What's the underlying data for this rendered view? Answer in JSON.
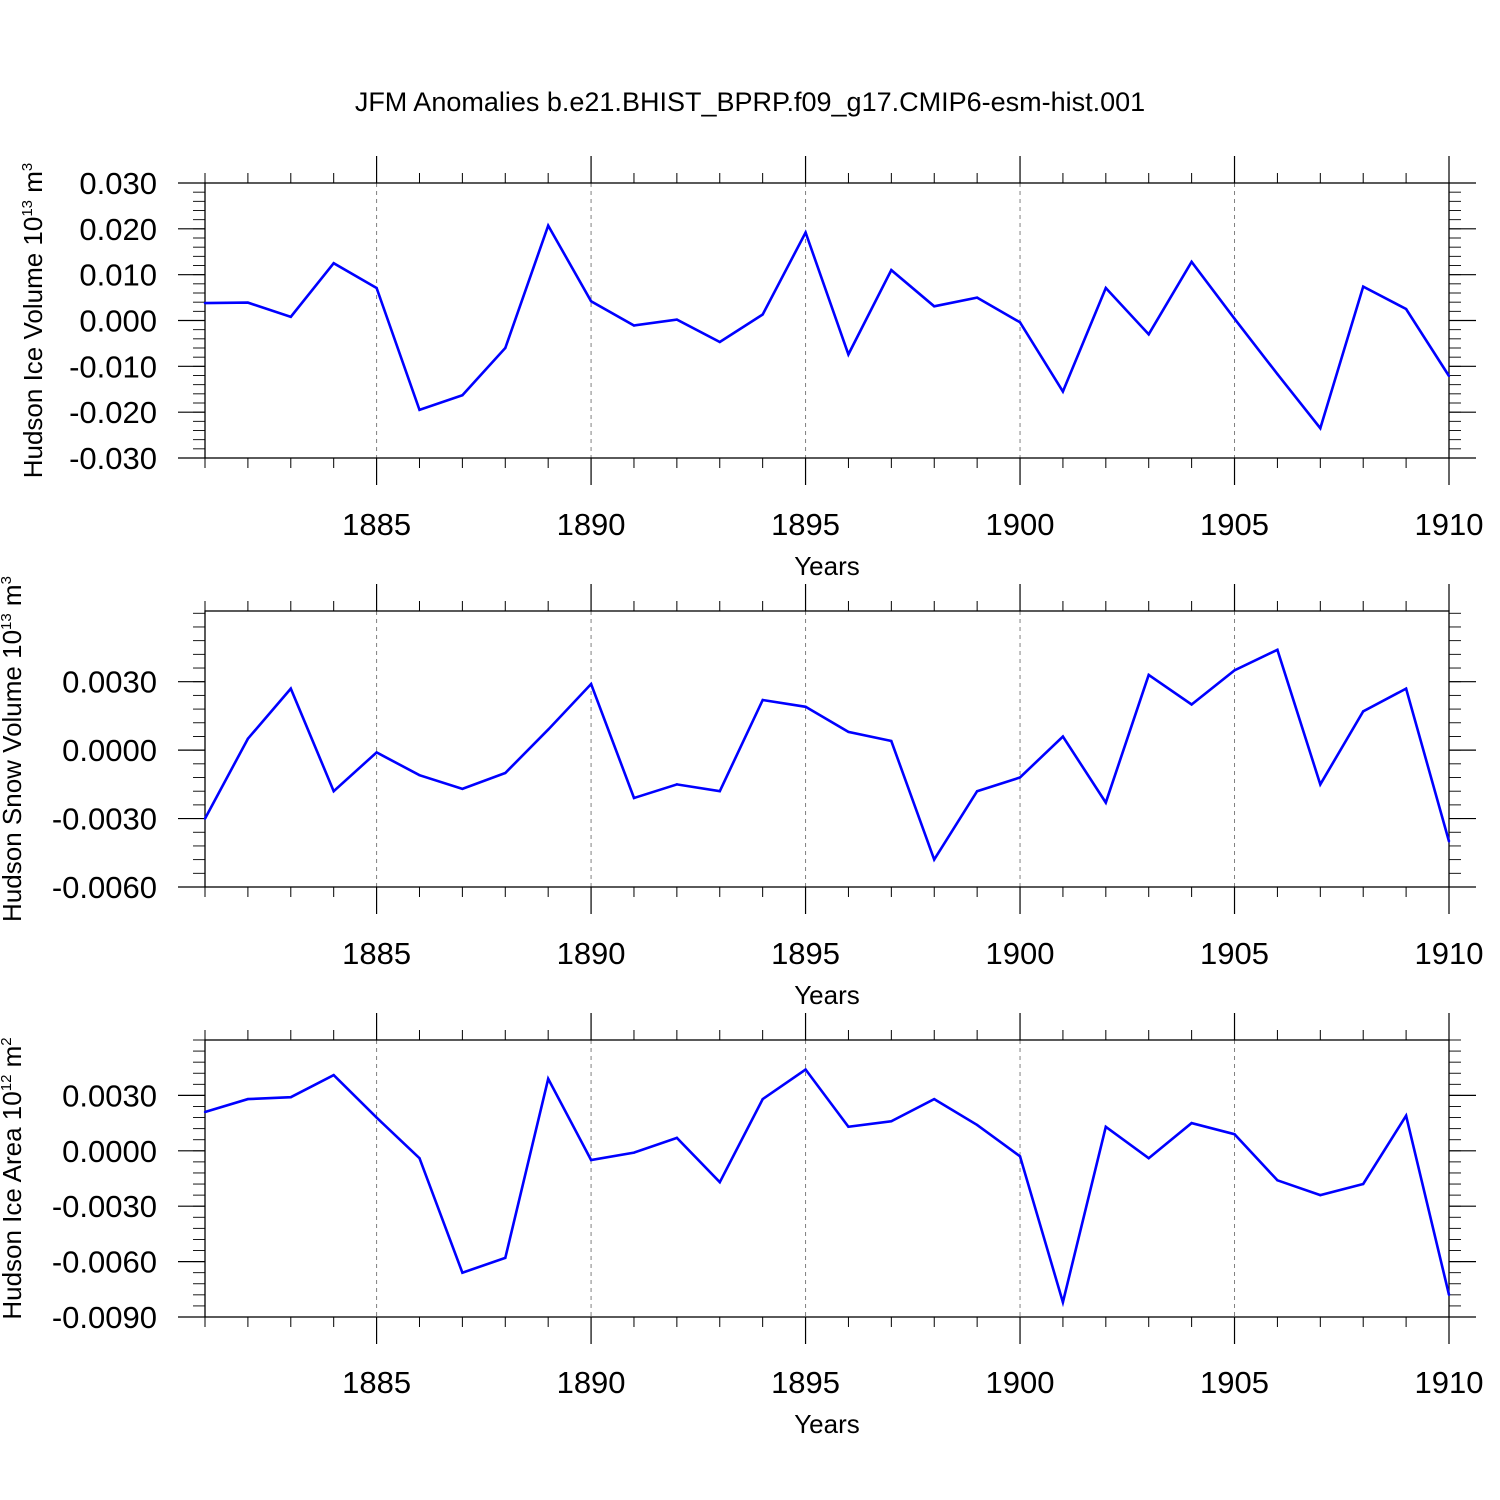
{
  "title": "JFM Anomalies b.e21.BHIST_BPRP.f09_g17.CMIP6-esm-hist.001",
  "colors": {
    "line": "#0000ff",
    "frame": "#000000",
    "grid": "#808080"
  },
  "chart_data": [
    {
      "type": "line",
      "name": "ice-volume",
      "ylabel": {
        "text": "Hudson Ice Volume 10",
        "sup": "13",
        "unit": " m",
        "unit_sup": "3"
      },
      "xlabel": "Years",
      "xlim": [
        1881,
        1910
      ],
      "ylim": [
        -0.03,
        0.03
      ],
      "yticks": [
        {
          "value": 0.03,
          "label": "0.030"
        },
        {
          "value": 0.02,
          "label": "0.020"
        },
        {
          "value": 0.01,
          "label": "0.010"
        },
        {
          "value": 0.0,
          "label": "0.000"
        },
        {
          "value": -0.01,
          "label": "-0.010"
        },
        {
          "value": -0.02,
          "label": "-0.020"
        },
        {
          "value": -0.03,
          "label": "-0.030"
        }
      ],
      "yminor_step": 0.002,
      "xticks": [
        {
          "value": 1885,
          "label": "1885"
        },
        {
          "value": 1890,
          "label": "1890"
        },
        {
          "value": 1895,
          "label": "1895"
        },
        {
          "value": 1900,
          "label": "1900"
        },
        {
          "value": 1905,
          "label": "1905"
        },
        {
          "value": 1910,
          "label": "1910"
        }
      ],
      "x": [
        1881,
        1882,
        1883,
        1884,
        1885,
        1886,
        1887,
        1888,
        1889,
        1890,
        1891,
        1892,
        1893,
        1894,
        1895,
        1896,
        1897,
        1898,
        1899,
        1900,
        1901,
        1902,
        1903,
        1904,
        1905,
        1906,
        1907,
        1908,
        1909,
        1910
      ],
      "y": [
        0.0038,
        0.0039,
        0.0008,
        0.0125,
        0.0071,
        -0.0195,
        -0.0163,
        -0.006,
        0.0207,
        0.0042,
        -0.0011,
        0.0002,
        -0.0047,
        0.0013,
        0.0192,
        -0.0074,
        0.011,
        0.0031,
        0.005,
        -0.0004,
        -0.0155,
        0.0071,
        -0.003,
        0.0128,
        0.0004,
        -0.0117,
        -0.0235,
        0.0074,
        0.0025,
        -0.0121
      ]
    },
    {
      "type": "line",
      "name": "snow-volume",
      "ylabel": {
        "text": "Hudson Snow Volume 10",
        "sup": "13",
        "unit": " m",
        "unit_sup": "3"
      },
      "xlabel": "Years",
      "xlim": [
        1881,
        1910
      ],
      "ylim": [
        -0.006,
        0.0061
      ],
      "yticks": [
        {
          "value": 0.003,
          "label": "0.0030"
        },
        {
          "value": 0.0,
          "label": "0.0000"
        },
        {
          "value": -0.003,
          "label": "-0.0030"
        },
        {
          "value": -0.006,
          "label": "-0.0060"
        }
      ],
      "yminor_step": 0.0006,
      "xticks": [
        {
          "value": 1885,
          "label": "1885"
        },
        {
          "value": 1890,
          "label": "1890"
        },
        {
          "value": 1895,
          "label": "1895"
        },
        {
          "value": 1900,
          "label": "1900"
        },
        {
          "value": 1905,
          "label": "1905"
        },
        {
          "value": 1910,
          "label": "1910"
        }
      ],
      "x": [
        1881,
        1882,
        1883,
        1884,
        1885,
        1886,
        1887,
        1888,
        1889,
        1890,
        1891,
        1892,
        1893,
        1894,
        1895,
        1896,
        1897,
        1898,
        1899,
        1900,
        1901,
        1902,
        1903,
        1904,
        1905,
        1906,
        1907,
        1908,
        1909,
        1910
      ],
      "y": [
        -0.003,
        0.0005,
        0.0027,
        -0.0018,
        -0.0001,
        -0.0011,
        -0.0017,
        -0.001,
        0.0009,
        0.0029,
        -0.0021,
        -0.0015,
        -0.0018,
        0.0022,
        0.0019,
        0.0008,
        0.0004,
        -0.0048,
        -0.0018,
        -0.0012,
        0.0006,
        -0.0023,
        0.0033,
        0.002,
        0.0035,
        0.0044,
        -0.0015,
        0.0017,
        0.0027,
        -0.004
      ]
    },
    {
      "type": "line",
      "name": "ice-area",
      "ylabel": {
        "text": "Hudson Ice Area 10",
        "sup": "12",
        "unit": " m",
        "unit_sup": "2"
      },
      "xlabel": "Years",
      "xlim": [
        1881,
        1910
      ],
      "ylim": [
        -0.009,
        0.006
      ],
      "yticks": [
        {
          "value": 0.003,
          "label": "0.0030"
        },
        {
          "value": 0.0,
          "label": "0.0000"
        },
        {
          "value": -0.003,
          "label": "-0.0030"
        },
        {
          "value": -0.006,
          "label": "-0.0060"
        },
        {
          "value": -0.009,
          "label": "-0.0090"
        }
      ],
      "yminor_step": 0.0006,
      "xticks": [
        {
          "value": 1885,
          "label": "1885"
        },
        {
          "value": 1890,
          "label": "1890"
        },
        {
          "value": 1895,
          "label": "1895"
        },
        {
          "value": 1900,
          "label": "1900"
        },
        {
          "value": 1905,
          "label": "1905"
        },
        {
          "value": 1910,
          "label": "1910"
        }
      ],
      "x": [
        1881,
        1882,
        1883,
        1884,
        1885,
        1886,
        1887,
        1888,
        1889,
        1890,
        1891,
        1892,
        1893,
        1894,
        1895,
        1896,
        1897,
        1898,
        1899,
        1900,
        1901,
        1902,
        1903,
        1904,
        1905,
        1906,
        1907,
        1908,
        1909,
        1910
      ],
      "y": [
        0.0021,
        0.0028,
        0.0029,
        0.0041,
        0.0018,
        -0.0004,
        -0.0066,
        -0.0058,
        0.0039,
        -0.0005,
        -0.0001,
        0.0007,
        -0.0017,
        0.0028,
        0.0044,
        0.0013,
        0.0016,
        0.0028,
        0.0014,
        -0.0003,
        -0.0082,
        0.0013,
        -0.0004,
        0.0015,
        0.0009,
        -0.0016,
        -0.0024,
        -0.0018,
        0.0019,
        -0.0078
      ]
    }
  ]
}
